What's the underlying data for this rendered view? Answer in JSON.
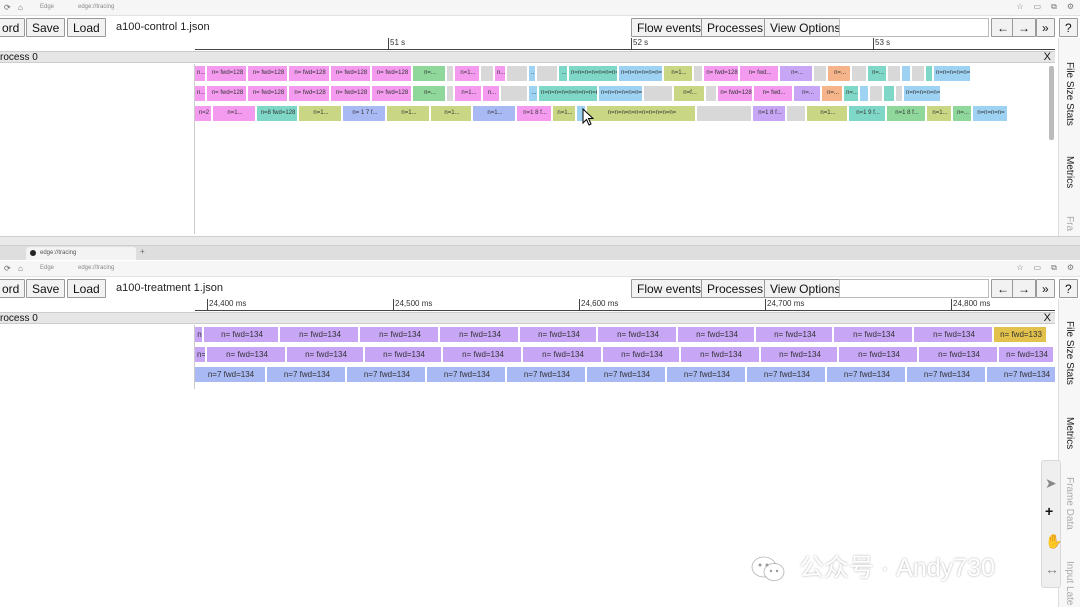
{
  "colors": {
    "pink": "#f49bf0",
    "violet": "#c8a6f6",
    "blue": "#a9b9f3",
    "green": "#8fd79a",
    "olive": "#c9d784",
    "teal": "#7fd8c7",
    "sky": "#9ed2f3",
    "orange": "#f5b48a",
    "yellow": "#e2c24c",
    "gray": "#d8d8d8"
  },
  "top": {
    "address": {
      "url": "edge://tracing",
      "label": "Edge"
    },
    "toolbar": {
      "record_label": "ord",
      "save_label": "Save",
      "load_label": "Load",
      "filename": "a100-control 1.json",
      "flow_label": "Flow events",
      "processes_label": "Processes",
      "view_options_label": "View Options",
      "back_label": "←",
      "forward_label": "→",
      "more_label": "»",
      "help_label": "?"
    },
    "ruler": {
      "ticks": [
        "51 s",
        "52 s",
        "53 s"
      ]
    },
    "process": {
      "name": "rocess 0",
      "close": "X"
    },
    "lanes": [
      [
        {
          "w": 12,
          "c": "pink",
          "t": "n..."
        },
        {
          "w": 41,
          "c": "pink",
          "t": "n= fwd=128"
        },
        {
          "w": 41,
          "c": "pink",
          "t": "n= fwd=128"
        },
        {
          "w": 42,
          "c": "pink",
          "t": "n= fwd=128"
        },
        {
          "w": 41,
          "c": "pink",
          "t": "n= fwd=128"
        },
        {
          "w": 41,
          "c": "pink",
          "t": "n= fwd=128"
        },
        {
          "w": 34,
          "c": "green",
          "t": "n=..."
        },
        {
          "w": 8,
          "c": "gray",
          "t": ""
        },
        {
          "w": 26,
          "c": "pink",
          "t": "n=1..."
        },
        {
          "w": 14,
          "c": "gray",
          "t": ""
        },
        {
          "w": 12,
          "c": "pink",
          "t": "n..."
        },
        {
          "w": 22,
          "c": "gray",
          "t": ""
        },
        {
          "w": 8,
          "c": "sky",
          "t": "..."
        },
        {
          "w": 22,
          "c": "gray",
          "t": ""
        },
        {
          "w": 10,
          "c": "teal",
          "t": "..."
        },
        {
          "w": 50,
          "c": "teal",
          "t": "n=n=n=n=n=n=n=n="
        },
        {
          "w": 45,
          "c": "sky",
          "t": "n=n=n=n=n=n="
        },
        {
          "w": 30,
          "c": "olive",
          "t": "n=1..."
        },
        {
          "w": 10,
          "c": "gray",
          "t": ""
        },
        {
          "w": 36,
          "c": "pink",
          "t": "n= fwd=128"
        },
        {
          "w": 40,
          "c": "pink",
          "t": "n= fwd..."
        },
        {
          "w": 34,
          "c": "violet",
          "t": "n=..."
        },
        {
          "w": 14,
          "c": "gray",
          "t": ""
        },
        {
          "w": 24,
          "c": "orange",
          "t": "n=..."
        },
        {
          "w": 16,
          "c": "gray",
          "t": ""
        },
        {
          "w": 20,
          "c": "teal",
          "t": "n=..."
        },
        {
          "w": 14,
          "c": "gray",
          "t": ""
        },
        {
          "w": 10,
          "c": "sky",
          "t": ""
        },
        {
          "w": 14,
          "c": "gray",
          "t": ""
        },
        {
          "w": 8,
          "c": "teal",
          "t": ""
        },
        {
          "w": 38,
          "c": "sky",
          "t": "n=n=n=n=n="
        }
      ],
      [
        {
          "w": 12,
          "c": "pink",
          "t": "n..."
        },
        {
          "w": 41,
          "c": "pink",
          "t": "n= fwd=128"
        },
        {
          "w": 41,
          "c": "pink",
          "t": "n= fwd=128"
        },
        {
          "w": 42,
          "c": "pink",
          "t": "n= fwd=128"
        },
        {
          "w": 41,
          "c": "pink",
          "t": "n= fwd=128"
        },
        {
          "w": 41,
          "c": "pink",
          "t": "n= fwd=128"
        },
        {
          "w": 34,
          "c": "green",
          "t": "n=..."
        },
        {
          "w": 8,
          "c": "gray",
          "t": ""
        },
        {
          "w": 28,
          "c": "pink",
          "t": "n=1..."
        },
        {
          "w": 18,
          "c": "pink",
          "t": "n..."
        },
        {
          "w": 28,
          "c": "gray",
          "t": ""
        },
        {
          "w": 10,
          "c": "sky",
          "t": "..."
        },
        {
          "w": 60,
          "c": "teal",
          "t": "n=n=n=n=n=n=n=n=n="
        },
        {
          "w": 45,
          "c": "sky",
          "t": "n=n=n=n=n=n="
        },
        {
          "w": 30,
          "c": "gray",
          "t": ""
        },
        {
          "w": 32,
          "c": "olive",
          "t": "n=f..."
        },
        {
          "w": 12,
          "c": "gray",
          "t": ""
        },
        {
          "w": 36,
          "c": "pink",
          "t": "n= fwd=128"
        },
        {
          "w": 40,
          "c": "pink",
          "t": "n= fwd..."
        },
        {
          "w": 28,
          "c": "violet",
          "t": "n=..."
        },
        {
          "w": 22,
          "c": "orange",
          "t": "n=..."
        },
        {
          "w": 16,
          "c": "teal",
          "t": "n=..."
        },
        {
          "w": 10,
          "c": "sky",
          "t": ""
        },
        {
          "w": 14,
          "c": "gray",
          "t": ""
        },
        {
          "w": 12,
          "c": "teal",
          "t": ""
        },
        {
          "w": 8,
          "c": "gray",
          "t": ""
        },
        {
          "w": 38,
          "c": "sky",
          "t": "n=n=n=n=n="
        }
      ],
      [
        {
          "w": 18,
          "c": "pink",
          "t": "n=2"
        },
        {
          "w": 44,
          "c": "pink",
          "t": "n=1..."
        },
        {
          "w": 42,
          "c": "teal",
          "t": "n=8 fwd=128"
        },
        {
          "w": 44,
          "c": "olive",
          "t": "n=1..."
        },
        {
          "w": 44,
          "c": "blue",
          "t": "n= 1 7 f..."
        },
        {
          "w": 44,
          "c": "olive",
          "t": "n=1..."
        },
        {
          "w": 42,
          "c": "olive",
          "t": "n=1..."
        },
        {
          "w": 44,
          "c": "blue",
          "t": "n=1..."
        },
        {
          "w": 36,
          "c": "pink",
          "t": "n=1 8 f..."
        },
        {
          "w": 24,
          "c": "olive",
          "t": "n=1..."
        },
        {
          "w": 10,
          "c": "sky",
          "t": ""
        },
        {
          "w": 110,
          "c": "olive",
          "t": "n=n=n=n=n=n=n=n=n=n="
        },
        {
          "w": 56,
          "c": "gray",
          "t": ""
        },
        {
          "w": 34,
          "c": "violet",
          "t": "n=1 8 f..."
        },
        {
          "w": 20,
          "c": "gray",
          "t": ""
        },
        {
          "w": 42,
          "c": "olive",
          "t": "n=1..."
        },
        {
          "w": 38,
          "c": "teal",
          "t": "n=1 9 f..."
        },
        {
          "w": 40,
          "c": "green",
          "t": "n=1 8 f..."
        },
        {
          "w": 26,
          "c": "olive",
          "t": "n=1..."
        },
        {
          "w": 20,
          "c": "green",
          "t": "n=..."
        },
        {
          "w": 36,
          "c": "sky",
          "t": "n=n=n=n="
        }
      ]
    ],
    "sidebar": [
      "File Size Stats",
      "Metrics",
      "Fra"
    ]
  },
  "bottom": {
    "tab": {
      "title": "edge://tracing"
    },
    "address": {
      "url": "edge://tracing",
      "label": "Edge"
    },
    "toolbar": {
      "record_label": "ord",
      "save_label": "Save",
      "load_label": "Load",
      "filename": "a100-treatment 1.json",
      "flow_label": "Flow events",
      "processes_label": "Processes",
      "view_options_label": "View Options",
      "back_label": "←",
      "forward_label": "→",
      "more_label": "»",
      "help_label": "?"
    },
    "ruler": {
      "ticks": [
        "24,400 ms",
        "24,500 ms",
        "24,600 ms",
        "24,700 ms",
        "24,800 ms"
      ]
    },
    "process": {
      "name": "rocess 0",
      "close": "X"
    },
    "lanes": [
      [
        {
          "w": 9,
          "c": "violet",
          "t": "n"
        },
        {
          "w": 76,
          "c": "violet",
          "t": "n= fwd=134"
        },
        {
          "w": 80,
          "c": "violet",
          "t": "n= fwd=134"
        },
        {
          "w": 80,
          "c": "violet",
          "t": "n= fwd=134"
        },
        {
          "w": 80,
          "c": "violet",
          "t": "n= fwd=134"
        },
        {
          "w": 78,
          "c": "violet",
          "t": "n= fwd=134"
        },
        {
          "w": 80,
          "c": "violet",
          "t": "n= fwd=134"
        },
        {
          "w": 78,
          "c": "violet",
          "t": "n= fwd=134"
        },
        {
          "w": 78,
          "c": "violet",
          "t": "n= fwd=134"
        },
        {
          "w": 80,
          "c": "violet",
          "t": "n= fwd=134"
        },
        {
          "w": 80,
          "c": "violet",
          "t": "n= fwd=134"
        },
        {
          "w": 54,
          "c": "yellow",
          "t": "n= fwd=133"
        }
      ],
      [
        {
          "w": 12,
          "c": "violet",
          "t": "n="
        },
        {
          "w": 80,
          "c": "violet",
          "t": "n= fwd=134"
        },
        {
          "w": 78,
          "c": "violet",
          "t": "n= fwd=134"
        },
        {
          "w": 78,
          "c": "violet",
          "t": "n= fwd=134"
        },
        {
          "w": 80,
          "c": "violet",
          "t": "n= fwd=134"
        },
        {
          "w": 80,
          "c": "violet",
          "t": "n= fwd=134"
        },
        {
          "w": 78,
          "c": "violet",
          "t": "n= fwd=134"
        },
        {
          "w": 80,
          "c": "violet",
          "t": "n= fwd=134"
        },
        {
          "w": 78,
          "c": "violet",
          "t": "n= fwd=134"
        },
        {
          "w": 80,
          "c": "violet",
          "t": "n= fwd=134"
        },
        {
          "w": 80,
          "c": "violet",
          "t": "n= fwd=134"
        },
        {
          "w": 56,
          "c": "violet",
          "t": "n= fwd=134"
        }
      ],
      [
        {
          "w": 72,
          "c": "blue",
          "t": "n=7 fwd=134"
        },
        {
          "w": 80,
          "c": "blue",
          "t": "n=7 fwd=134"
        },
        {
          "w": 80,
          "c": "blue",
          "t": "n=7 fwd=134"
        },
        {
          "w": 80,
          "c": "blue",
          "t": "n=7 fwd=134"
        },
        {
          "w": 80,
          "c": "blue",
          "t": "n=7 fwd=134"
        },
        {
          "w": 80,
          "c": "blue",
          "t": "n=7 fwd=134"
        },
        {
          "w": 80,
          "c": "blue",
          "t": "n=7 fwd=134"
        },
        {
          "w": 80,
          "c": "blue",
          "t": "n=7 fwd=134"
        },
        {
          "w": 80,
          "c": "blue",
          "t": "n=7 fwd=134"
        },
        {
          "w": 80,
          "c": "blue",
          "t": "n=7 fwd=134"
        },
        {
          "w": 80,
          "c": "blue",
          "t": "n=7 fwd=134"
        },
        {
          "w": 68,
          "c": "blue",
          "t": "n=7 fwd=134"
        }
      ]
    ],
    "sidebar": [
      "File Size Stats",
      "Metrics",
      "Frame Data",
      "Input Late"
    ]
  },
  "watermark": {
    "text": "公众号 · Andy730"
  }
}
